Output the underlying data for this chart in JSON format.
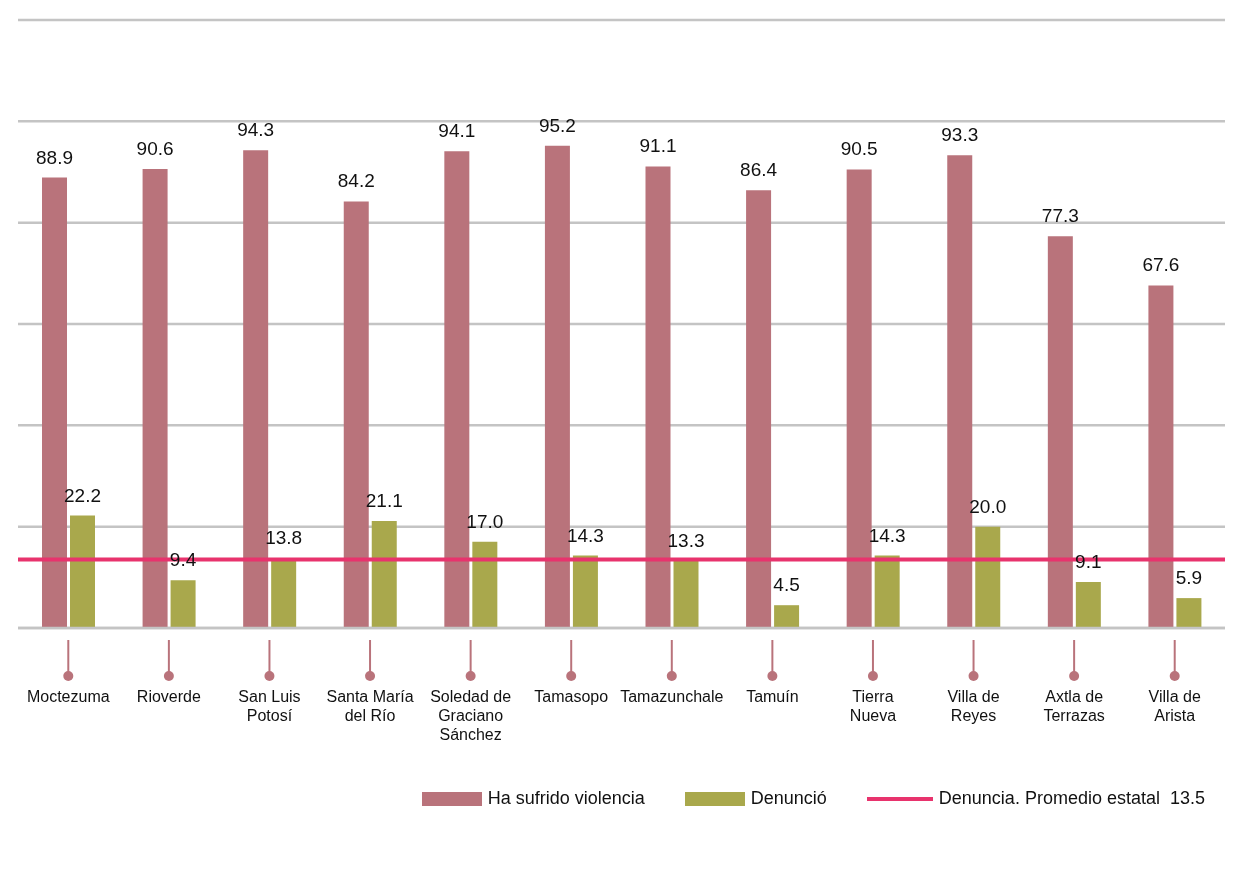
{
  "chart_data": {
    "type": "bar",
    "categories": [
      "Moctezuma",
      "Rioverde",
      "San Luis Potosí",
      "Santa María del Río",
      "Soledad de Graciano Sánchez",
      "Tamasopo",
      "Tamazunchale",
      "Tamuín",
      "Tierra Nueva",
      "Villa de Reyes",
      "Axtla de Terrazas",
      "Villa de Arista"
    ],
    "series": [
      {
        "name": "Ha sufrido violencia",
        "color": "#b9737b",
        "values": [
          88.9,
          90.6,
          94.3,
          84.2,
          94.1,
          95.2,
          91.1,
          86.4,
          90.5,
          93.3,
          77.3,
          67.6
        ],
        "value_labels": [
          "88.9",
          "90.6",
          "94.3",
          "84.2",
          "94.1",
          "95.2",
          "91.1",
          "86.4",
          "90.5",
          "93.3",
          "77.3",
          "67.6"
        ]
      },
      {
        "name": "Denunció",
        "color": "#a9a84c",
        "values": [
          22.2,
          9.4,
          13.8,
          21.1,
          17.0,
          14.3,
          13.3,
          4.5,
          14.3,
          20.0,
          9.1,
          5.9
        ],
        "value_labels": [
          "22.2",
          "9.4",
          "13.8",
          "21.1",
          "17.0",
          "14.3",
          "13.3",
          "4.5",
          "14.3",
          "20.0",
          "9.1",
          "5.9"
        ]
      }
    ],
    "tick_labels": "x",
    "grid": "y",
    "legend": "bottom",
    "ref_lines": [
      {
        "axis": "y",
        "value": 13.5,
        "label": "Denuncia. Promedio estatal  13.5",
        "color": "#e8336d"
      }
    ]
  }
}
